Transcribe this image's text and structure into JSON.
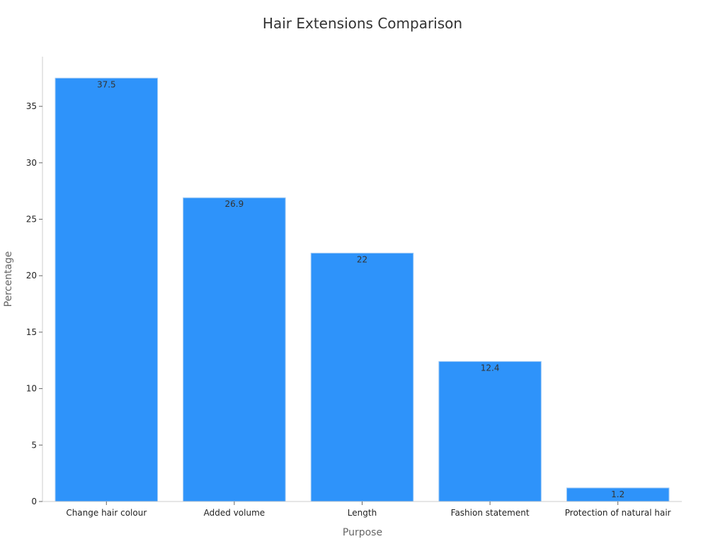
{
  "chart_data": {
    "type": "bar",
    "title": "Hair Extensions Comparison",
    "xlabel": "Purpose",
    "ylabel": "Percentage",
    "categories": [
      "Change hair colour",
      "Added volume",
      "Length",
      "Fashion statement",
      "Protection of natural hair"
    ],
    "values": [
      37.5,
      26.9,
      22,
      12.4,
      1.2
    ],
    "data_labels": [
      "37.5",
      "26.9",
      "22",
      "12.4",
      "1.2"
    ],
    "y_ticks": [
      0,
      5,
      10,
      15,
      20,
      25,
      30,
      35
    ],
    "ylim": [
      0,
      39.4
    ],
    "grid": false,
    "legend": "none",
    "bar_color": "#2e93fa",
    "bar_edge_color": "#9cc8f5"
  }
}
